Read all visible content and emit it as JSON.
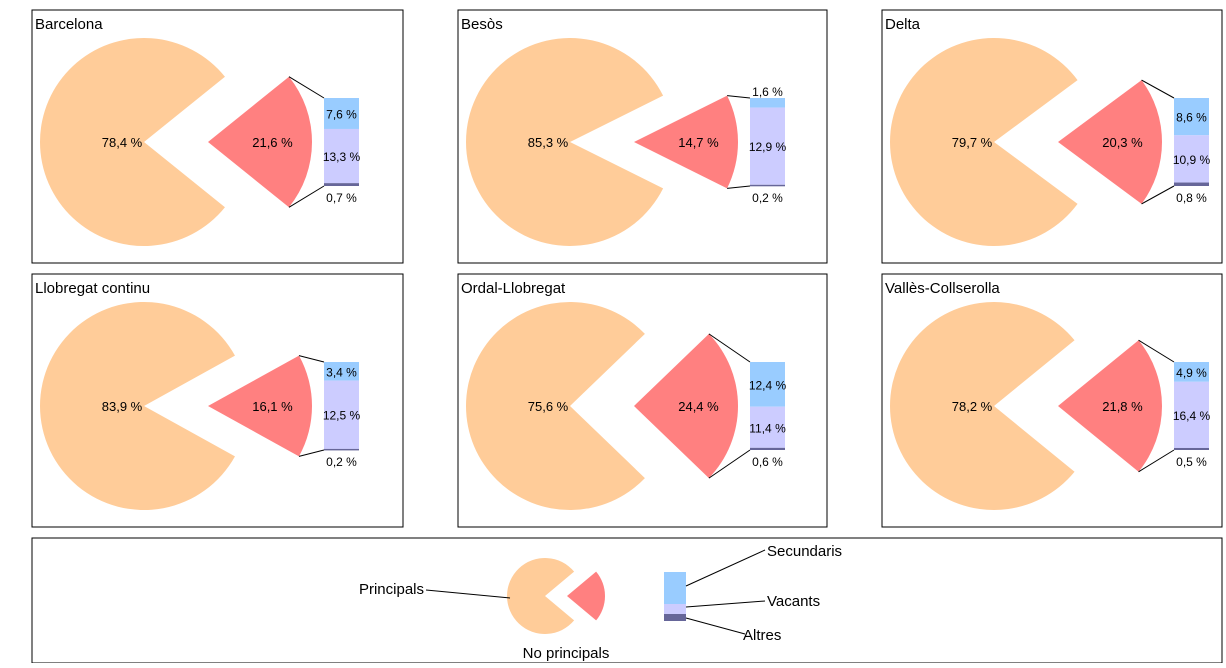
{
  "colors": {
    "principals": "#FFCC99",
    "no_principals": "#FF8080",
    "secundaris": "#99CCFF",
    "vacants": "#CCCCFF",
    "altres": "#666699"
  },
  "legend": {
    "principals": "Principals",
    "no_principals": "No principals",
    "secundaris": "Secundaris",
    "vacants": "Vacants",
    "altres": "Altres"
  },
  "chart_data": [
    {
      "type": "bar-of-pie",
      "title": "Barcelona",
      "pie": {
        "principals": 78.4,
        "no_principals": 21.6
      },
      "pie_labels": {
        "principals": "78,4 %",
        "no_principals": "21,6 %"
      },
      "bar": {
        "secundaris": 7.6,
        "vacants": 13.3,
        "altres": 0.7
      },
      "bar_labels": {
        "secundaris": "7,6 %",
        "vacants": "13,3 %",
        "altres": "0,7 %"
      }
    },
    {
      "type": "bar-of-pie",
      "title": "Besòs",
      "pie": {
        "principals": 85.3,
        "no_principals": 14.7
      },
      "pie_labels": {
        "principals": "85,3 %",
        "no_principals": "14,7 %"
      },
      "bar": {
        "secundaris": 1.6,
        "vacants": 12.9,
        "altres": 0.2
      },
      "bar_labels": {
        "secundaris": "1,6 %",
        "vacants": "12,9 %",
        "altres": "0,2 %"
      }
    },
    {
      "type": "bar-of-pie",
      "title": "Delta",
      "pie": {
        "principals": 79.7,
        "no_principals": 20.3
      },
      "pie_labels": {
        "principals": "79,7 %",
        "no_principals": "20,3 %"
      },
      "bar": {
        "secundaris": 8.6,
        "vacants": 10.9,
        "altres": 0.8
      },
      "bar_labels": {
        "secundaris": "8,6 %",
        "vacants": "10,9 %",
        "altres": "0,8 %"
      }
    },
    {
      "type": "bar-of-pie",
      "title": "Llobregat continu",
      "pie": {
        "principals": 83.9,
        "no_principals": 16.1
      },
      "pie_labels": {
        "principals": "83,9 %",
        "no_principals": "16,1 %"
      },
      "bar": {
        "secundaris": 3.4,
        "vacants": 12.5,
        "altres": 0.2
      },
      "bar_labels": {
        "secundaris": "3,4 %",
        "vacants": "12,5 %",
        "altres": "0,2 %"
      }
    },
    {
      "type": "bar-of-pie",
      "title": "Ordal-Llobregat",
      "pie": {
        "principals": 75.6,
        "no_principals": 24.4
      },
      "pie_labels": {
        "principals": "75,6 %",
        "no_principals": "24,4 %"
      },
      "bar": {
        "secundaris": 12.4,
        "vacants": 11.4,
        "altres": 0.6
      },
      "bar_labels": {
        "secundaris": "12,4 %",
        "vacants": "11,4 %",
        "altres": "0,6 %"
      }
    },
    {
      "type": "bar-of-pie",
      "title": "Vallès-Collserolla",
      "pie": {
        "principals": 78.2,
        "no_principals": 21.8
      },
      "pie_labels": {
        "principals": "78,2 %",
        "no_principals": "21,8 %"
      },
      "bar": {
        "secundaris": 4.9,
        "vacants": 16.4,
        "altres": 0.5
      },
      "bar_labels": {
        "secundaris": "4,9 %",
        "vacants": "16,4 %",
        "altres": "0,5 %"
      }
    }
  ]
}
